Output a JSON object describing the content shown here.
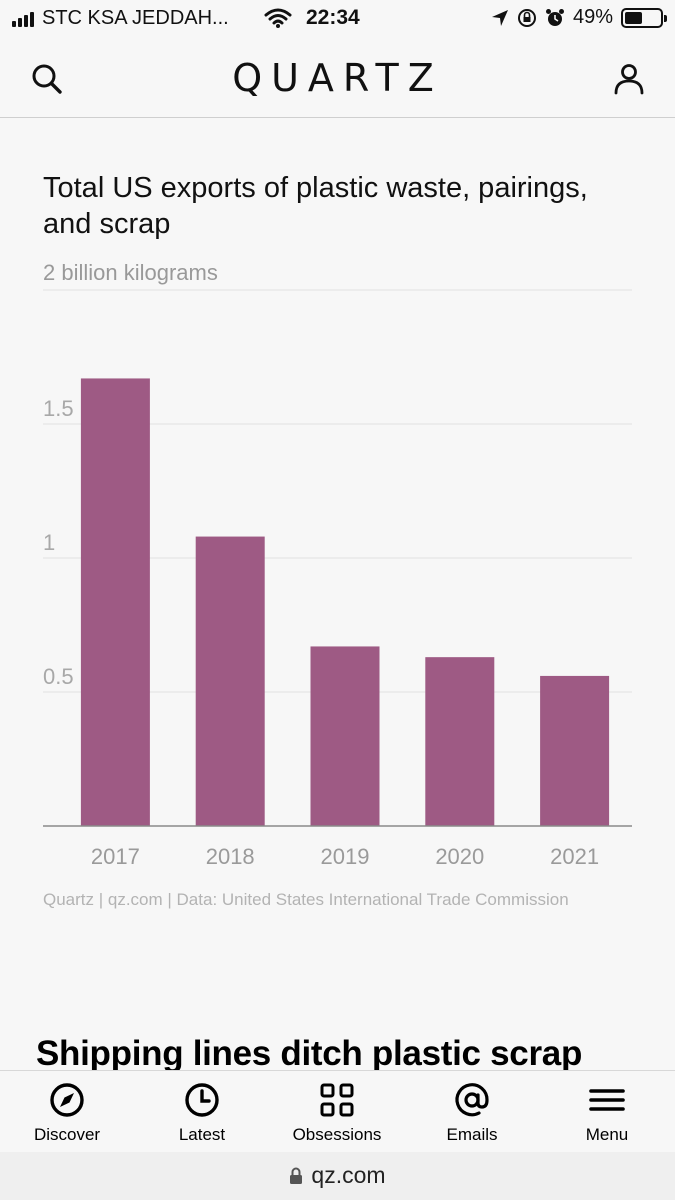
{
  "status_bar": {
    "carrier": "STC KSA JEDDAH...",
    "time": "22:34",
    "battery_percent": "49%",
    "battery_level": 0.49
  },
  "header": {
    "logo": "QUARTZ"
  },
  "chart_data": {
    "type": "bar",
    "title": "Total US exports of plastic waste, pairings, and scrap",
    "subtitle": "2 billion kilograms",
    "categories": [
      "2017",
      "2018",
      "2019",
      "2020",
      "2021"
    ],
    "values": [
      1.67,
      1.08,
      0.67,
      0.63,
      0.56
    ],
    "y_ticks": [
      0.5,
      1,
      1.5,
      2
    ],
    "y_tick_labels": [
      "0.5",
      "1",
      "1.5",
      ""
    ],
    "ylim": [
      0,
      2
    ],
    "grid": true,
    "bar_color": "#9e5a84",
    "source": "Quartz | qz.com | Data: United States International Trade Commission"
  },
  "article": {
    "headline": "Shipping lines ditch plastic scrap"
  },
  "bottom_nav": {
    "items": [
      {
        "label": "Discover",
        "icon": "compass-icon"
      },
      {
        "label": "Latest",
        "icon": "clock-icon"
      },
      {
        "label": "Obsessions",
        "icon": "grid-icon"
      },
      {
        "label": "Emails",
        "icon": "at-icon"
      },
      {
        "label": "Menu",
        "icon": "hamburger-icon"
      }
    ]
  },
  "url_bar": {
    "url": "qz.com"
  }
}
